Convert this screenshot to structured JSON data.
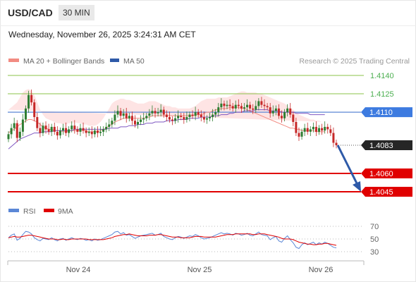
{
  "header": {
    "symbol": "USD/CAD",
    "timeframe": "30 MIN",
    "datetime": "Wednesday, November 26, 2025 3:24:31 AM CET"
  },
  "legend": {
    "ma20": "MA 20 + Bollinger Bands",
    "ma50": "MA 50",
    "rsi": "RSI",
    "ma9": "9MA",
    "credit": "Research © 2025 Trading Central"
  },
  "colors": {
    "candle_up": "#2e7d32",
    "candle_down": "#c62828",
    "bollinger": "#fdd8d8",
    "ma20": "#f28b82",
    "ma50": "#7e57c2",
    "resistance": "#8bc34a",
    "support": "#e00000",
    "current": "#5b87d6",
    "arrow": "#2e5aa8",
    "rsi": "#5b87d6",
    "rsi_ma": "#e00000"
  },
  "chart_data": [
    {
      "type": "candlestick",
      "x_ticks": [
        "Nov 24",
        "Nov 25",
        "Nov 26"
      ],
      "ylim": [
        1.4035,
        1.415
      ],
      "levels": [
        {
          "value": 1.414,
          "label": "1.4140",
          "kind": "resistance"
        },
        {
          "value": 1.4125,
          "label": "1.4125",
          "kind": "resistance"
        },
        {
          "value": 1.411,
          "label": "1.4110",
          "kind": "pivot"
        },
        {
          "value": 1.4083,
          "label": "1.4083",
          "kind": "last"
        },
        {
          "value": 1.406,
          "label": "1.4060",
          "kind": "support"
        },
        {
          "value": 1.4045,
          "label": "1.4045",
          "kind": "support"
        }
      ],
      "close": [
        1.4092,
        1.4097,
        1.4101,
        1.4089,
        1.4094,
        1.4104,
        1.4113,
        1.4124,
        1.4118,
        1.4106,
        1.4097,
        1.4093,
        1.4099,
        1.4096,
        1.4094,
        1.4098,
        1.4094,
        1.4091,
        1.4095,
        1.4097,
        1.4093,
        1.4096,
        1.4099,
        1.4096,
        1.4094,
        1.4097,
        1.4095,
        1.4093,
        1.4094,
        1.4092,
        1.4095,
        1.4093,
        1.4094,
        1.4096,
        1.4098,
        1.41,
        1.4103,
        1.4108,
        1.4111,
        1.4107,
        1.4109,
        1.4105,
        1.4107,
        1.4103,
        1.41,
        1.4102,
        1.4104,
        1.4105,
        1.4107,
        1.4109,
        1.4111,
        1.4109,
        1.411,
        1.4112,
        1.4108,
        1.4106,
        1.4104,
        1.4103,
        1.4105,
        1.4107,
        1.4106,
        1.4104,
        1.4106,
        1.4108,
        1.4107,
        1.411,
        1.4108,
        1.4106,
        1.4104,
        1.4105,
        1.4106,
        1.4108,
        1.411,
        1.4114,
        1.4117,
        1.4115,
        1.4116,
        1.4115,
        1.4113,
        1.4116,
        1.4115,
        1.4113,
        1.4114,
        1.4116,
        1.4113,
        1.4112,
        1.4115,
        1.4119,
        1.4116,
        1.4115,
        1.4114,
        1.4109,
        1.4111,
        1.4113,
        1.4107,
        1.4105,
        1.411,
        1.4113,
        1.4108,
        1.4102,
        1.4093,
        1.409,
        1.4094,
        1.4097,
        1.4094,
        1.4096,
        1.4098,
        1.4094,
        1.4097,
        1.4095,
        1.4098,
        1.4096,
        1.4093,
        1.4085,
        1.4083
      ],
      "bb_upper": [
        1.4112,
        1.4114,
        1.4116,
        1.4118,
        1.4122,
        1.4126,
        1.4128,
        1.4129,
        1.4127,
        1.4124,
        1.4118,
        1.4112,
        1.4108,
        1.4105,
        1.4104,
        1.4103,
        1.4102,
        1.4101,
        1.4101,
        1.41,
        1.41,
        1.4101,
        1.4101,
        1.4102,
        1.4101,
        1.4101,
        1.41,
        1.41,
        1.4099,
        1.4099,
        1.4099,
        1.41,
        1.4102,
        1.4105,
        1.4109,
        1.4113,
        1.4117,
        1.4119,
        1.412,
        1.4121,
        1.4121,
        1.412,
        1.412,
        1.4119,
        1.4118,
        1.4117,
        1.4117,
        1.4117,
        1.4118,
        1.4119,
        1.4119,
        1.4119,
        1.4118,
        1.4117,
        1.4116,
        1.4115,
        1.4115,
        1.4114,
        1.4114,
        1.4113,
        1.4113,
        1.4113,
        1.4113,
        1.4113,
        1.4114,
        1.4115,
        1.4117,
        1.4119,
        1.412,
        1.4121,
        1.4121,
        1.4121,
        1.4121,
        1.4122,
        1.4122,
        1.4122,
        1.4122,
        1.4123,
        1.4124,
        1.4125,
        1.4126,
        1.4127,
        1.4127,
        1.4126,
        1.4126,
        1.4126,
        1.4126,
        1.4125,
        1.4125,
        1.4124,
        1.4123,
        1.4122,
        1.4121,
        1.412,
        1.4119,
        1.4118,
        1.4117,
        1.4115,
        1.4113,
        1.4112,
        1.411,
        1.4108,
        1.4107,
        1.4106,
        1.4105,
        1.4104,
        1.4104,
        1.4103,
        1.4103,
        1.4102,
        1.4102
      ],
      "bb_lower": [
        1.408,
        1.4081,
        1.4081,
        1.4082,
        1.4083,
        1.4084,
        1.4086,
        1.4087,
        1.4088,
        1.4088,
        1.4088,
        1.4087,
        1.4087,
        1.4087,
        1.4087,
        1.4088,
        1.4088,
        1.4088,
        1.4088,
        1.4088,
        1.4088,
        1.4088,
        1.4089,
        1.4089,
        1.4089,
        1.4089,
        1.4089,
        1.4089,
        1.4089,
        1.4089,
        1.4089,
        1.4089,
        1.4089,
        1.4089,
        1.4089,
        1.409,
        1.409,
        1.4091,
        1.4092,
        1.4093,
        1.4094,
        1.4095,
        1.4096,
        1.4097,
        1.4097,
        1.4097,
        1.4097,
        1.4098,
        1.4098,
        1.4099,
        1.4099,
        1.41,
        1.41,
        1.41,
        1.41,
        1.41,
        1.41,
        1.41,
        1.41,
        1.41,
        1.41,
        1.41,
        1.41,
        1.41,
        1.41,
        1.41,
        1.4101,
        1.4101,
        1.4102,
        1.4102,
        1.4102,
        1.4103,
        1.4103,
        1.4104,
        1.4104,
        1.4105,
        1.4105,
        1.4106,
        1.4106,
        1.4106,
        1.4106,
        1.4105,
        1.4104,
        1.4103,
        1.4101,
        1.4099,
        1.4097,
        1.4095,
        1.4093,
        1.4092,
        1.4091,
        1.409,
        1.4089,
        1.4088,
        1.4088,
        1.4087,
        1.4087,
        1.4087,
        1.4087,
        1.4087,
        1.4087,
        1.4087,
        1.4087,
        1.4087,
        1.4087,
        1.4087,
        1.4087,
        1.4087,
        1.4086,
        1.4086,
        1.4086
      ],
      "ma20": [
        1.4093,
        1.4095,
        1.4096,
        1.4098,
        1.41,
        1.4101,
        1.4103,
        1.4104,
        1.4104,
        1.4103,
        1.4102,
        1.41,
        1.4098,
        1.4097,
        1.4096,
        1.4096,
        1.4095,
        1.4095,
        1.4095,
        1.4094,
        1.4094,
        1.4095,
        1.4095,
        1.4095,
        1.4095,
        1.4095,
        1.4095,
        1.4095,
        1.4094,
        1.4094,
        1.4094,
        1.4094,
        1.4095,
        1.4096,
        1.4097,
        1.4099,
        1.41,
        1.4102,
        1.4103,
        1.4104,
        1.4105,
        1.4105,
        1.4105,
        1.4105,
        1.4105,
        1.4105,
        1.4105,
        1.4105,
        1.4106,
        1.4106,
        1.4107,
        1.4107,
        1.4107,
        1.4107,
        1.4107,
        1.4107,
        1.4107,
        1.4107,
        1.4107,
        1.4107,
        1.4107,
        1.4107,
        1.4107,
        1.4107,
        1.4107,
        1.4108,
        1.4108,
        1.4108,
        1.4109,
        1.411,
        1.411,
        1.4111,
        1.4112,
        1.4112,
        1.4113,
        1.4113,
        1.4113,
        1.4114,
        1.4114,
        1.4114,
        1.4114,
        1.4113,
        1.4113,
        1.4112,
        1.4111,
        1.411,
        1.4109,
        1.4108,
        1.4107,
        1.4106,
        1.4105,
        1.4104,
        1.4103,
        1.4102,
        1.4101,
        1.41,
        1.4099,
        1.4098,
        1.4097,
        1.4097,
        1.4096,
        1.4096,
        1.4095,
        1.4095,
        1.4095,
        1.4095,
        1.4095,
        1.4094,
        1.4094,
        1.4094,
        1.4094
      ],
      "ma50": [
        1.408,
        1.4082,
        1.4084,
        1.4086,
        1.4088,
        1.4089,
        1.409,
        1.4091,
        1.4092,
        1.4093,
        1.4093,
        1.4093,
        1.4094,
        1.4094,
        1.4094,
        1.4094,
        1.4095,
        1.4095,
        1.4095,
        1.4095,
        1.4095,
        1.4095,
        1.4095,
        1.4096,
        1.4096,
        1.4096,
        1.4096,
        1.4096,
        1.4096,
        1.4096,
        1.4096,
        1.4096,
        1.4096,
        1.4096,
        1.4096,
        1.4097,
        1.4097,
        1.4097,
        1.4097,
        1.4098,
        1.4098,
        1.4098,
        1.4099,
        1.4099,
        1.4099,
        1.41,
        1.41,
        1.41,
        1.4101,
        1.4101,
        1.4101,
        1.4102,
        1.4102,
        1.4102,
        1.4102,
        1.4103,
        1.4103,
        1.4103,
        1.4103,
        1.4104,
        1.4104,
        1.4104,
        1.4104,
        1.4105,
        1.4105,
        1.4105,
        1.4105,
        1.4106,
        1.4106,
        1.4106,
        1.4106,
        1.4107,
        1.4107,
        1.4107,
        1.4108,
        1.4108,
        1.4108,
        1.4109,
        1.4109,
        1.411,
        1.411,
        1.411,
        1.4111,
        1.4111,
        1.4111,
        1.4111,
        1.4112,
        1.4112,
        1.4112,
        1.4112,
        1.4112,
        1.4111,
        1.4111,
        1.4111,
        1.4111,
        1.411,
        1.411,
        1.411,
        1.411,
        1.411,
        1.4109,
        1.4109,
        1.4109,
        1.4109,
        1.4109,
        1.4108,
        1.4108,
        1.4108,
        1.4108,
        1.4108,
        1.4108
      ]
    },
    {
      "type": "line",
      "name": "RSI",
      "ylim": [
        25,
        75
      ],
      "y_ticks": [
        70,
        50,
        30
      ],
      "rsi": [
        52,
        56,
        58,
        48,
        51,
        57,
        62,
        61,
        58,
        52,
        49,
        47,
        51,
        50,
        49,
        52,
        49,
        47,
        50,
        51,
        48,
        50,
        52,
        50,
        49,
        51,
        50,
        48,
        49,
        47,
        50,
        48,
        49,
        51,
        53,
        55,
        57,
        61,
        62,
        58,
        60,
        56,
        57,
        54,
        51,
        53,
        55,
        56,
        57,
        58,
        59,
        56,
        57,
        59,
        54,
        52,
        50,
        49,
        52,
        54,
        53,
        51,
        53,
        55,
        54,
        57,
        55,
        52,
        50,
        51,
        52,
        54,
        56,
        58,
        60,
        58,
        59,
        58,
        56,
        59,
        58,
        56,
        57,
        59,
        56,
        55,
        58,
        61,
        57,
        56,
        55,
        49,
        52,
        54,
        47,
        45,
        51,
        55,
        49,
        44,
        37,
        35,
        41,
        44,
        41,
        43,
        45,
        41,
        44,
        42,
        45,
        43,
        40,
        37,
        36
      ],
      "ma9": [
        52,
        53,
        54,
        53,
        53,
        54,
        55,
        56,
        56,
        55,
        54,
        53,
        52,
        51,
        50,
        50,
        50,
        49,
        49,
        50,
        49,
        49,
        50,
        50,
        50,
        50,
        50,
        50,
        49,
        49,
        49,
        49,
        49,
        49,
        50,
        51,
        52,
        54,
        55,
        56,
        57,
        57,
        58,
        57,
        56,
        55,
        55,
        55,
        55,
        56,
        56,
        56,
        57,
        57,
        56,
        55,
        54,
        53,
        53,
        53,
        52,
        52,
        52,
        52,
        53,
        54,
        54,
        54,
        53,
        53,
        53,
        53,
        53,
        54,
        55,
        56,
        57,
        57,
        57,
        58,
        58,
        58,
        58,
        58,
        58,
        57,
        57,
        58,
        58,
        58,
        57,
        56,
        55,
        54,
        53,
        51,
        50,
        50,
        50,
        49,
        47,
        45,
        44,
        43,
        42,
        42,
        41,
        41,
        42,
        42,
        43,
        43,
        42,
        41,
        40
      ]
    }
  ]
}
